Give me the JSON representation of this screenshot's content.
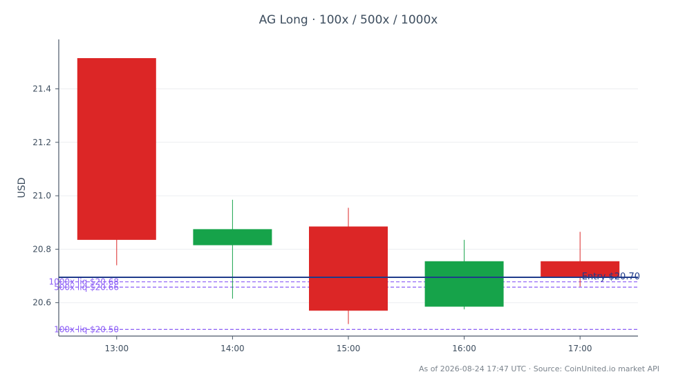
{
  "chart_data": {
    "type": "candlestick",
    "title": "AG Long · 100x / 500x / 1000x",
    "xlabel": "",
    "ylabel": "USD",
    "ylim": [
      20.475,
      21.585
    ],
    "yticks": [
      20.6,
      20.8,
      21.0,
      21.2,
      21.4
    ],
    "ytick_labels": [
      "20.6",
      "20.8",
      "21.0",
      "21.2",
      "21.4"
    ],
    "grid": true,
    "categories": [
      "13:00",
      "14:00",
      "15:00",
      "16:00",
      "17:00"
    ],
    "candles": [
      {
        "time": "13:00",
        "open": 21.515,
        "high": 21.515,
        "low": 20.74,
        "close": 20.835
      },
      {
        "time": "14:00",
        "open": 20.815,
        "high": 20.985,
        "low": 20.615,
        "close": 20.875
      },
      {
        "time": "15:00",
        "open": 20.885,
        "high": 20.955,
        "low": 20.52,
        "close": 20.57
      },
      {
        "time": "16:00",
        "open": 20.585,
        "high": 20.835,
        "low": 20.575,
        "close": 20.755
      },
      {
        "time": "17:00",
        "open": 20.755,
        "high": 20.865,
        "low": 20.66,
        "close": 20.695
      }
    ],
    "up_color": "#16a34a",
    "down_color": "#dc2626",
    "entry": {
      "label": "Entry $20.70",
      "value": 20.695,
      "color": "#1e3a8a"
    },
    "liquidations": [
      {
        "label": "1000x liq $20.68",
        "value": 20.678
      },
      {
        "label": "500x liq $20.66",
        "value": 20.658
      },
      {
        "label": "100x liq $20.50",
        "value": 20.5
      }
    ],
    "liq_color": "#8b5cf6",
    "footer": "As of 2026-08-24 17:47 UTC · Source: CoinUnited.io market API"
  }
}
